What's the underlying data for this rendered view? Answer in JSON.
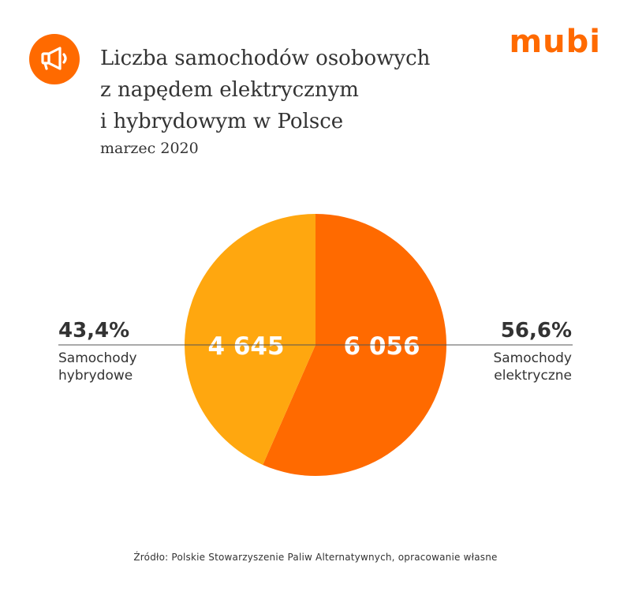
{
  "brand": {
    "name": "mubi",
    "accent": "#ff6a00",
    "icon": "megaphone-icon"
  },
  "header": {
    "title_lines": [
      "Liczba samochodów osobowych",
      "z napędem elektrycznym",
      "i hybrydowym w Polsce"
    ],
    "subtitle": "marzec 2020"
  },
  "chart_data": {
    "type": "pie",
    "slices": [
      {
        "name": "Samochody elektryczne",
        "label_lines": [
          "Samochody",
          "elektryczne"
        ],
        "value": 6056,
        "value_label": "6 056",
        "percent_label": "56,6%",
        "color": "#ff6a00"
      },
      {
        "name": "Samochody hybrydowe",
        "label_lines": [
          "Samochody",
          "hybrydowe"
        ],
        "value": 4645,
        "value_label": "4 645",
        "percent_label": "43,4%",
        "color": "#ffa70f"
      }
    ],
    "start": "12 o'clock",
    "direction": "clockwise"
  },
  "footer": {
    "source": "Źródło: Polskie Stowarzyszenie Paliw Alternatywnych, opracowanie własne"
  }
}
